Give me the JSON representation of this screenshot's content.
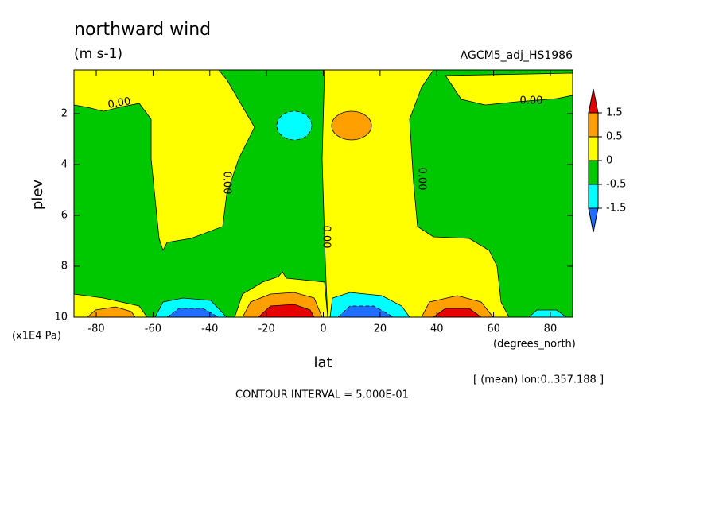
{
  "chart_data": {
    "type": "contour",
    "title": "northward wind",
    "units": "(m s-1)",
    "dataset": "AGCM5_adj_HS1986",
    "x_label": "lat",
    "x_units": "(degrees_north)",
    "y_label": "plev",
    "y_units": "(x1E4 Pa)",
    "note": "[ (mean) lon:0..357.188 ]",
    "contour_interval_text": "CONTOUR INTERVAL = 5.000E-01",
    "contour_label": "0.00",
    "xlim": [
      -87.86,
      87.86
    ],
    "xticks": [
      -80,
      -60,
      -40,
      -20,
      0,
      20,
      40,
      60,
      80
    ],
    "ylim": [
      10,
      0.28
    ],
    "yticks": [
      2,
      4,
      6,
      8,
      10
    ],
    "colorbar": {
      "levels": [
        -1.5,
        -0.5,
        0,
        0.5,
        1.5
      ],
      "colors": [
        "#1e6eff",
        "#00ffff",
        "#00c800",
        "#ffff00",
        "#ffa000",
        "#e60000"
      ]
    }
  }
}
